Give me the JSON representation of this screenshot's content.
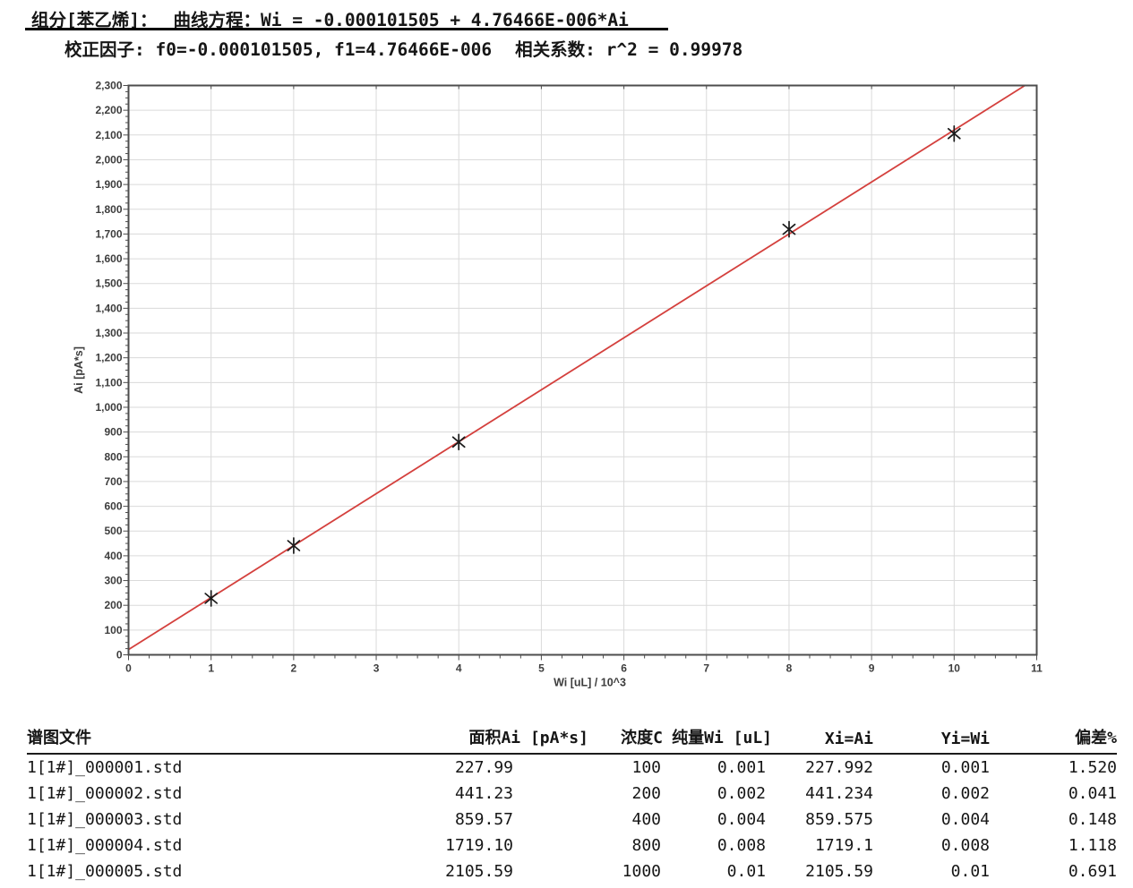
{
  "header": {
    "component": "组分[苯乙烯]：",
    "equation_label": "曲线方程：",
    "equation": "Wi = -0.000101505 + 4.76466E-006*Ai",
    "factors": "校正因子: f0=-0.000101505, f1=4.76466E-006",
    "correlation_label": "相关系数:",
    "correlation_value": "r^2 = 0.99978"
  },
  "chart_data": {
    "type": "scatter",
    "title": "",
    "xlabel": "Wi [uL] / 10^3",
    "ylabel": "Ai [pA*s]",
    "x": [
      1,
      2,
      4,
      8,
      10
    ],
    "y": [
      227.99,
      441.23,
      859.57,
      1719.1,
      2105.59
    ],
    "fit": {
      "f0": -0.000101505,
      "f1": 4.76466e-06,
      "x_scale": 1000
    },
    "xlim": [
      0,
      11
    ],
    "ylim": [
      0,
      2300
    ],
    "x_major_step": 1,
    "x_minor_step": 0.25,
    "y_major_step": 100,
    "y_minor_step": 25,
    "grid": true,
    "legend": "none",
    "marker": "asterisk",
    "colors": {
      "line": "#d4403d",
      "marker": "#1b1b1b",
      "grid": "#dadada",
      "frame": "#4d4d4d",
      "tick_text": "#3d3d3d"
    }
  },
  "table": {
    "columns": [
      "谱图文件",
      "面积Ai [pA*s]",
      "浓度C",
      "纯量Wi [uL]",
      "Xi=Ai",
      "Yi=Wi",
      "偏差%"
    ],
    "rows": [
      [
        "1[1#]_000001.std",
        "227.99",
        "100",
        "0.001",
        "227.992",
        "0.001",
        "1.520"
      ],
      [
        "1[1#]_000002.std",
        "441.23",
        "200",
        "0.002",
        "441.234",
        "0.002",
        "0.041"
      ],
      [
        "1[1#]_000003.std",
        "859.57",
        "400",
        "0.004",
        "859.575",
        "0.004",
        "0.148"
      ],
      [
        "1[1#]_000004.std",
        "1719.10",
        "800",
        "0.008",
        "1719.1",
        "0.008",
        "1.118"
      ],
      [
        "1[1#]_000005.std",
        "2105.59",
        "1000",
        "0.01",
        "2105.59",
        "0.01",
        "0.691"
      ]
    ]
  }
}
